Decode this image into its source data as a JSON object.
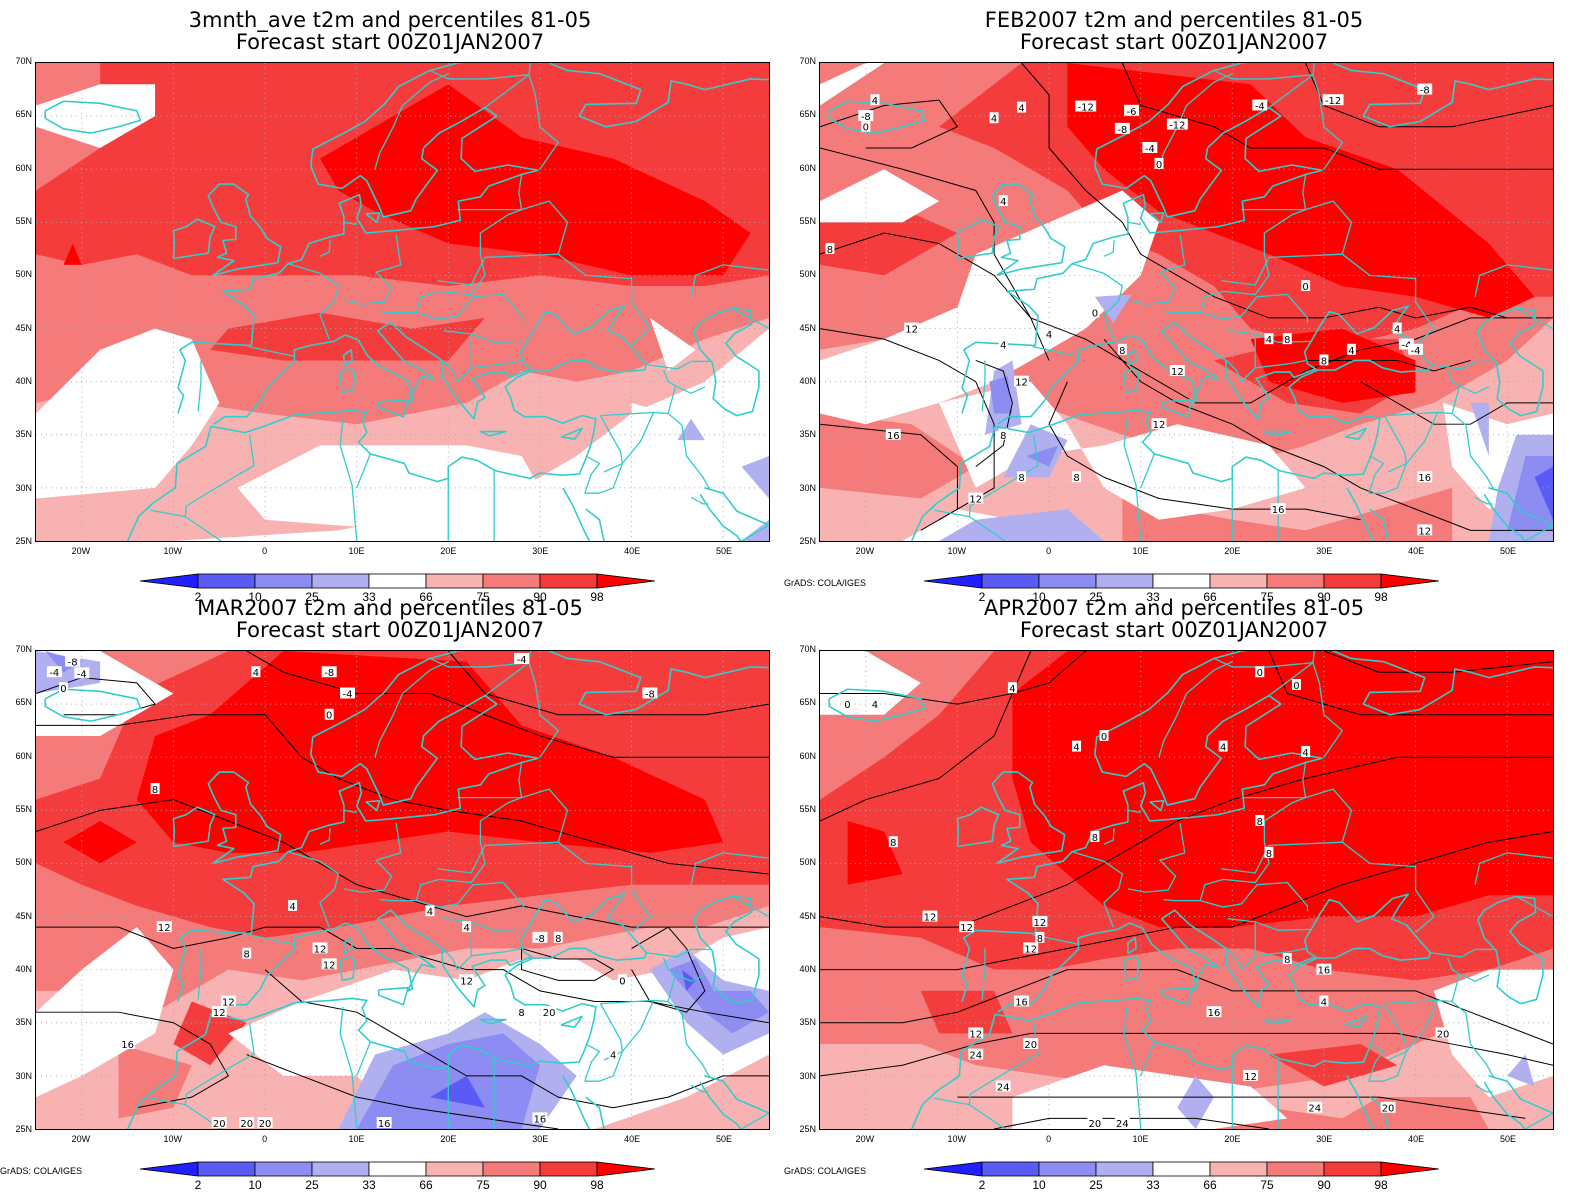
{
  "palette": {
    "p2": "#1f1fff",
    "p10": "#5a5af5",
    "p25": "#8c8cf2",
    "p33": "#b0b0f0",
    "white": "#ffffff",
    "p66": "#f9b2b2",
    "p75": "#f57a7a",
    "p90": "#f53c3c",
    "p98": "#ff0000",
    "coast": "#33cccc",
    "contour": "#000000",
    "grid": "#aaaaaa"
  },
  "axes": {
    "lat_ticks": [
      "70N",
      "65N",
      "60N",
      "55N",
      "50N",
      "45N",
      "40N",
      "35N",
      "30N",
      "25N"
    ],
    "lon_ticks": [
      "20W",
      "10W",
      "0",
      "10E",
      "20E",
      "30E",
      "40E",
      "50E"
    ]
  },
  "colorbar_labels": [
    "2",
    "10",
    "25",
    "33",
    "66",
    "75",
    "90",
    "98"
  ],
  "credit": "GrADS: COLA/IGES",
  "panels": [
    {
      "title_line1": "3mnth_ave t2m and percentiles 81-05",
      "title_line2": "Forecast start 00Z01JAN2007"
    },
    {
      "title_line1": "FEB2007 t2m and percentiles 81-05",
      "title_line2": "Forecast start 00Z01JAN2007"
    },
    {
      "title_line1": "MAR2007 t2m and percentiles 81-05",
      "title_line2": "Forecast start 00Z01JAN2007"
    },
    {
      "title_line1": "APR2007 t2m and percentiles 81-05",
      "title_line2": "Forecast start 00Z01JAN2007"
    }
  ],
  "contour_labels": {
    "feb": [
      "4",
      "-8",
      "0",
      "4",
      "4",
      "-12",
      "-6",
      "-8",
      "-4",
      "0",
      "4",
      "8",
      "0",
      "12",
      "4",
      "8",
      "12",
      "12",
      "4",
      "8",
      "16",
      "8",
      "8",
      "12",
      "12",
      "16",
      "12",
      "-4",
      "-4",
      "-12",
      "-12",
      "-8",
      "0",
      "4",
      "-4",
      "4",
      "8",
      "4",
      "8",
      "16"
    ],
    "mar": [
      "-8",
      "-4",
      "-4",
      "0",
      "4",
      "-8",
      "-4",
      "0",
      "-4",
      "-8",
      "8",
      "4",
      "4",
      "12",
      "8",
      "12",
      "12",
      "12",
      "4",
      "8",
      "-8",
      "0",
      "12",
      "8",
      "4",
      "16",
      "12",
      "20",
      "20",
      "20",
      "16",
      "16",
      "20"
    ],
    "apr": [
      "4",
      "0",
      "4",
      "0",
      "0",
      "0",
      "4",
      "4",
      "4",
      "8",
      "8",
      "8",
      "12",
      "12",
      "8",
      "12",
      "12",
      "8",
      "8",
      "4",
      "16",
      "16",
      "20",
      "12",
      "16",
      "12",
      "20",
      "24",
      "24",
      "20",
      "20",
      "24",
      "24"
    ]
  }
}
